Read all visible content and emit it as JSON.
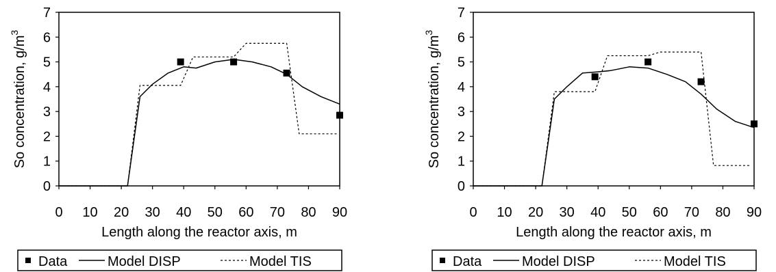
{
  "chart_data": [
    {
      "type": "line",
      "xlabel": "Length along the reactor axis, m",
      "ylabel": "So concentration, g/m",
      "ylabel_sup": "3",
      "xlim": [
        0,
        90
      ],
      "ylim": [
        0,
        7
      ],
      "x_ticks": [
        "0",
        "10",
        "20",
        "30",
        "40",
        "50",
        "60",
        "70",
        "80",
        "90"
      ],
      "y_ticks": [
        "0",
        "1",
        "2",
        "3",
        "4",
        "5",
        "6",
        "7"
      ],
      "grid": false,
      "legend_position": "bottom",
      "series": [
        {
          "name": "Data",
          "style": "markers",
          "x": [
            39,
            56,
            73,
            90
          ],
          "y": [
            5.0,
            5.0,
            4.55,
            2.85
          ]
        },
        {
          "name": "Model DISP",
          "style": "solid",
          "x": [
            0,
            22,
            26,
            30,
            35,
            40,
            44,
            50,
            56,
            62,
            68,
            73,
            78,
            84,
            90
          ],
          "y": [
            0,
            0,
            3.6,
            4.1,
            4.55,
            4.8,
            4.75,
            5.0,
            5.1,
            5.0,
            4.8,
            4.5,
            4.0,
            3.6,
            3.3
          ]
        },
        {
          "name": "Model TIS",
          "style": "dotted",
          "x": [
            0,
            22,
            26,
            39,
            43,
            56,
            60,
            73,
            77,
            89
          ],
          "y": [
            0,
            0,
            4.05,
            4.05,
            5.2,
            5.2,
            5.75,
            5.75,
            2.1,
            2.1
          ]
        }
      ]
    },
    {
      "type": "line",
      "xlabel": "Length along the reactor axis, m",
      "ylabel": "So concentration, g/m",
      "ylabel_sup": "3",
      "xlim": [
        0,
        90
      ],
      "ylim": [
        0,
        7
      ],
      "x_ticks": [
        "0",
        "10",
        "20",
        "30",
        "40",
        "50",
        "60",
        "70",
        "80",
        "90"
      ],
      "y_ticks": [
        "0",
        "1",
        "2",
        "3",
        "4",
        "5",
        "6",
        "7"
      ],
      "grid": false,
      "legend_position": "bottom",
      "series": [
        {
          "name": "Data",
          "style": "markers",
          "x": [
            39,
            56,
            73,
            90
          ],
          "y": [
            4.4,
            5.0,
            4.2,
            2.5
          ]
        },
        {
          "name": "Model DISP",
          "style": "solid",
          "x": [
            0,
            22,
            26,
            30,
            35,
            40,
            44,
            50,
            56,
            62,
            68,
            73,
            78,
            84,
            90
          ],
          "y": [
            0,
            0,
            3.5,
            4.0,
            4.55,
            4.6,
            4.65,
            4.8,
            4.75,
            4.5,
            4.2,
            3.7,
            3.1,
            2.6,
            2.35
          ]
        },
        {
          "name": "Model TIS",
          "style": "dotted",
          "x": [
            0,
            22,
            26,
            39,
            43,
            56,
            60,
            73,
            77,
            89
          ],
          "y": [
            0,
            0,
            3.8,
            3.8,
            5.25,
            5.25,
            5.4,
            5.4,
            0.82,
            0.82
          ]
        }
      ]
    }
  ]
}
